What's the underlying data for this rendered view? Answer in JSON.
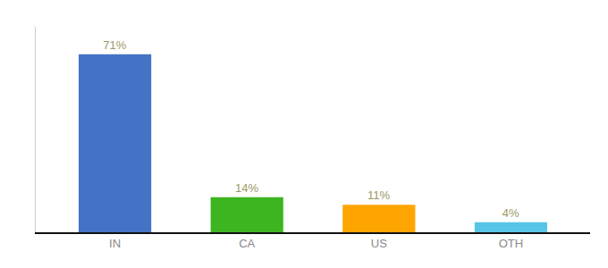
{
  "chart_data": {
    "type": "bar",
    "categories": [
      "IN",
      "CA",
      "US",
      "OTH"
    ],
    "values": [
      71,
      14,
      11,
      4
    ],
    "value_labels": [
      "71%",
      "14%",
      "11%",
      "4%"
    ],
    "colors": [
      "#4472C4",
      "#3CB521",
      "#FFA500",
      "#56C5E8"
    ],
    "ylim": [
      0,
      82
    ],
    "grid": false,
    "data_labels": true,
    "tick_labels": "x"
  }
}
